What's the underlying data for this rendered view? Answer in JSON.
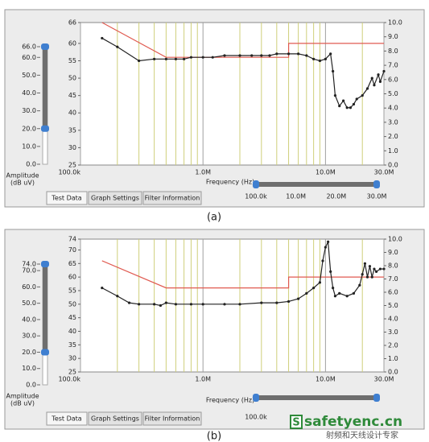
{
  "chart_data": [
    {
      "type": "line",
      "xlabel": "Frequency (Hz)",
      "xscale": "log",
      "grid": true,
      "xlim": [
        100000,
        30000000
      ],
      "xticks": [
        {
          "value": 100000,
          "label": "100.0k"
        },
        {
          "value": 1000000,
          "label": "1.0M"
        },
        {
          "value": 10000000,
          "label": "10.0M"
        },
        {
          "value": 30000000,
          "label": "30.0M"
        }
      ],
      "ylim": [
        25,
        66
      ],
      "yticks": [
        25,
        30,
        35,
        40,
        45,
        50,
        55,
        60,
        66
      ],
      "y2lim": [
        0,
        10
      ],
      "y2ticks": [
        {
          "value": 0,
          "label": "0.0"
        },
        {
          "value": 1,
          "label": "1.0"
        },
        {
          "value": 2,
          "label": "2.0"
        },
        {
          "value": 3,
          "label": "3.0"
        },
        {
          "value": 4,
          "label": "4.0"
        },
        {
          "value": 5,
          "label": "5.0"
        },
        {
          "value": 6,
          "label": "6.0"
        },
        {
          "value": 7,
          "label": "7.0"
        },
        {
          "value": 8,
          "label": "8.0"
        },
        {
          "value": 9,
          "label": "9.0"
        },
        {
          "value": 10,
          "label": "10.0"
        }
      ],
      "series": [
        {
          "color": "#e05a50",
          "markers": false,
          "x": [
            150000,
            500000,
            5000000,
            5000000,
            30000000
          ],
          "values": [
            66,
            56,
            56,
            60,
            60
          ]
        },
        {
          "color": "#222222",
          "markers": true,
          "x": [
            150000,
            200000,
            300000,
            400000,
            500000,
            600000,
            700000,
            800000,
            1000000,
            1200000,
            1500000,
            2000000,
            2500000,
            3000000,
            3500000,
            4000000,
            5000000,
            6000000,
            7000000,
            8000000,
            9000000,
            10000000,
            11000000,
            11500000,
            12000000,
            13000000,
            14000000,
            15000000,
            16000000,
            17000000,
            18000000,
            20000000,
            22000000,
            24000000,
            25000000,
            27000000,
            28000000,
            30000000
          ],
          "values": [
            61.5,
            59,
            55,
            55.5,
            55.5,
            55.5,
            55.5,
            56,
            56,
            56,
            56.5,
            56.5,
            56.5,
            56.5,
            56.5,
            57,
            57,
            57,
            56.5,
            55.5,
            55,
            55.5,
            57,
            52,
            45,
            42,
            43.5,
            41.5,
            41.5,
            42.5,
            44,
            45,
            47,
            50,
            48,
            51,
            49,
            52
          ]
        }
      ]
    },
    {
      "type": "line",
      "xlabel": "Frequency (Hz)",
      "xscale": "log",
      "grid": true,
      "xlim": [
        100000,
        30000000
      ],
      "xticks": [
        {
          "value": 100000,
          "label": "100.0k"
        },
        {
          "value": 1000000,
          "label": "1.0M"
        },
        {
          "value": 10000000,
          "label": "10.0M"
        },
        {
          "value": 30000000,
          "label": "30.0M"
        }
      ],
      "ylim": [
        25,
        74
      ],
      "yticks": [
        25,
        30,
        35,
        40,
        45,
        50,
        55,
        60,
        65,
        70,
        74
      ],
      "y2lim": [
        0,
        10
      ],
      "y2ticks": [
        {
          "value": 0,
          "label": "0.0"
        },
        {
          "value": 1,
          "label": "1.0"
        },
        {
          "value": 2,
          "label": "2.0"
        },
        {
          "value": 3,
          "label": "3.0"
        },
        {
          "value": 4,
          "label": "4.0"
        },
        {
          "value": 5,
          "label": "5.0"
        },
        {
          "value": 6,
          "label": "6.0"
        },
        {
          "value": 7,
          "label": "7.0"
        },
        {
          "value": 8,
          "label": "8.0"
        },
        {
          "value": 9,
          "label": "9.0"
        },
        {
          "value": 10,
          "label": "10.0"
        }
      ],
      "series": [
        {
          "color": "#e05a50",
          "markers": false,
          "x": [
            150000,
            500000,
            5000000,
            5000000,
            30000000
          ],
          "values": [
            66,
            56,
            56,
            60,
            60
          ]
        },
        {
          "color": "#222222",
          "markers": true,
          "x": [
            150000,
            200000,
            250000,
            300000,
            400000,
            450000,
            500000,
            600000,
            800000,
            1000000,
            1500000,
            2000000,
            3000000,
            4000000,
            5000000,
            6000000,
            7000000,
            8000000,
            9000000,
            9500000,
            10000000,
            10500000,
            11000000,
            11500000,
            12000000,
            13000000,
            15000000,
            17000000,
            19000000,
            20000000,
            21000000,
            22000000,
            23000000,
            24000000,
            25000000,
            26000000,
            28000000,
            30000000
          ],
          "values": [
            56,
            53,
            50.5,
            50,
            50,
            49.5,
            50.5,
            50,
            50,
            50,
            50,
            50,
            50.5,
            50.5,
            51,
            52,
            54,
            56,
            58,
            66,
            71,
            73,
            62,
            56,
            53,
            54,
            53,
            54,
            57,
            61,
            65,
            60,
            64,
            60,
            63,
            62,
            63,
            63
          ]
        }
      ]
    }
  ],
  "panels": [
    {
      "caption": "(a)",
      "amplitude_label": [
        "Amplitude",
        "(dB uV)"
      ],
      "amplitude_slider": {
        "ylim": [
          0,
          66
        ],
        "yticks": [
          {
            "value": 0,
            "label": "0.0"
          },
          {
            "value": 10,
            "label": "10.0"
          },
          {
            "value": 20,
            "label": "20.0"
          },
          {
            "value": 30,
            "label": "30.0"
          },
          {
            "value": 40,
            "label": "40.0"
          },
          {
            "value": 50,
            "label": "50.0"
          },
          {
            "value": 60,
            "label": "60.0"
          },
          {
            "value": 66,
            "label": "66.0"
          }
        ],
        "range": [
          20,
          66
        ]
      },
      "frequency_slider": {
        "xlim": [
          100000,
          30000000
        ],
        "xticks": [
          {
            "value": 100000,
            "label": "100.0k"
          },
          {
            "value": 10000000,
            "label": "10.0M"
          },
          {
            "value": 20000000,
            "label": "20.0M"
          },
          {
            "value": 30000000,
            "label": "30.0M"
          }
        ],
        "range": [
          100000,
          30000000
        ]
      },
      "tabs": [
        "Test Data",
        "Graph Settings",
        "Filter Information"
      ]
    },
    {
      "caption": "(b)",
      "amplitude_label": [
        "Amplitude",
        "(dB uV)"
      ],
      "amplitude_slider": {
        "ylim": [
          0,
          74
        ],
        "yticks": [
          {
            "value": 0,
            "label": "0.0"
          },
          {
            "value": 10,
            "label": "10.0"
          },
          {
            "value": 20,
            "label": "20.0"
          },
          {
            "value": 30,
            "label": "30.0"
          },
          {
            "value": 40,
            "label": "40.0"
          },
          {
            "value": 50,
            "label": "50.0"
          },
          {
            "value": 60,
            "label": "60.0"
          },
          {
            "value": 70,
            "label": "70.0"
          },
          {
            "value": 74,
            "label": "74.0"
          }
        ],
        "range": [
          20,
          74
        ]
      },
      "frequency_slider": {
        "xlim": [
          100000,
          30000000
        ],
        "xticks": [
          {
            "value": 100000,
            "label": "100.0k"
          }
        ],
        "range": [
          100000,
          30000000
        ]
      },
      "tabs": [
        "Test Data",
        "Graph Settings",
        "Filter Information"
      ]
    }
  ],
  "watermark": {
    "site": "safetyenc.cn",
    "logo": "S",
    "tagline": "射频和天线设计专家"
  }
}
